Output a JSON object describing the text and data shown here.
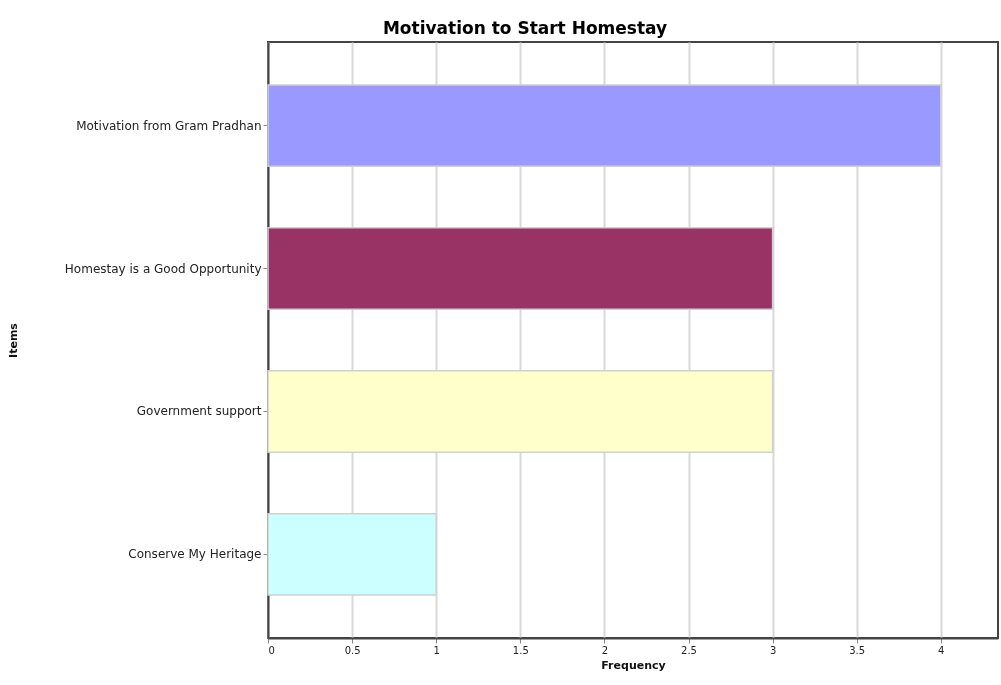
{
  "chart_data": {
    "type": "bar",
    "orientation": "horizontal",
    "title": "Motivation to Start Homestay",
    "xlabel": "Frequency",
    "ylabel": "Items",
    "categories": [
      "Motivation from Gram Pradhan",
      "Homestay is a Good Opportunity",
      "Government support",
      "Conserve My Heritage"
    ],
    "values": [
      4,
      3,
      3,
      1
    ],
    "colors": [
      "#9999ff",
      "#993366",
      "#ffffcc",
      "#ccffff"
    ],
    "xlim": [
      0,
      4.34
    ],
    "xticks": [
      0,
      0.5,
      1,
      1.5,
      2,
      2.5,
      3,
      3.5,
      4
    ],
    "grid": "x"
  }
}
